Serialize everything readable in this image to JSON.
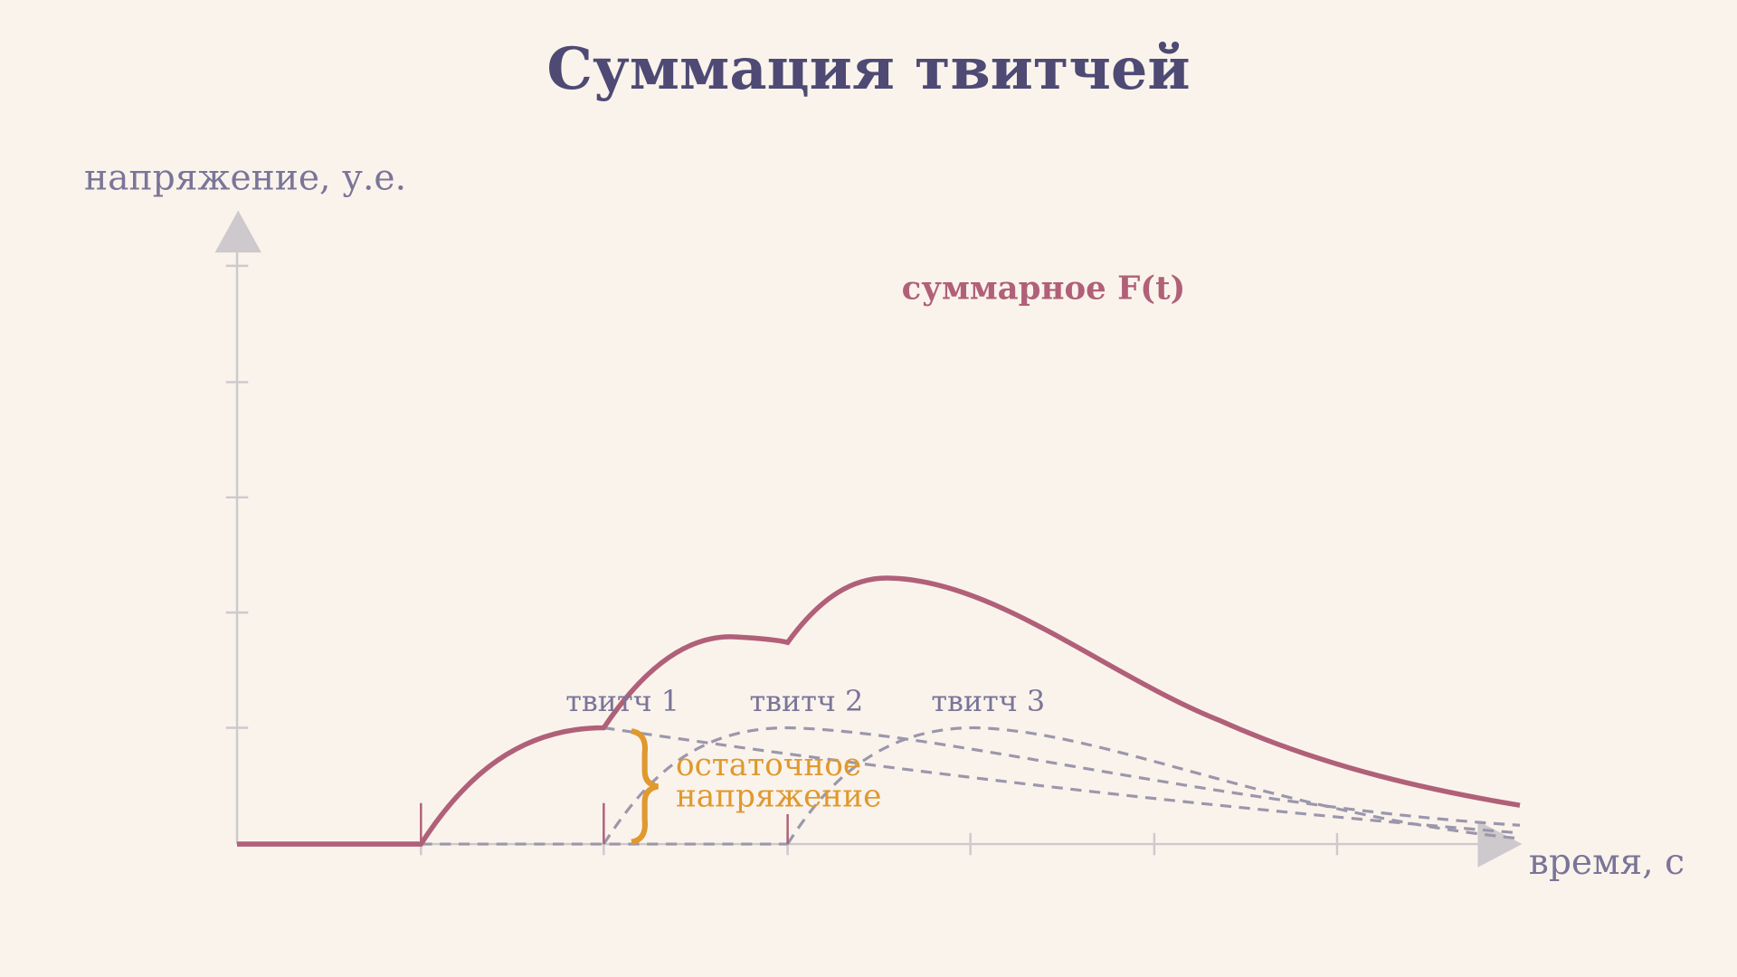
{
  "title": "Суммация твитчей",
  "y_axis_label": "напряжение, у.е.",
  "x_axis_label": "время, с",
  "sum_label": "суммарное F(t)",
  "twitch_labels": [
    "твитч 1",
    "твитч 2",
    "твитч 3"
  ],
  "residual_label": [
    "остаточное",
    "напряжение"
  ]
}
